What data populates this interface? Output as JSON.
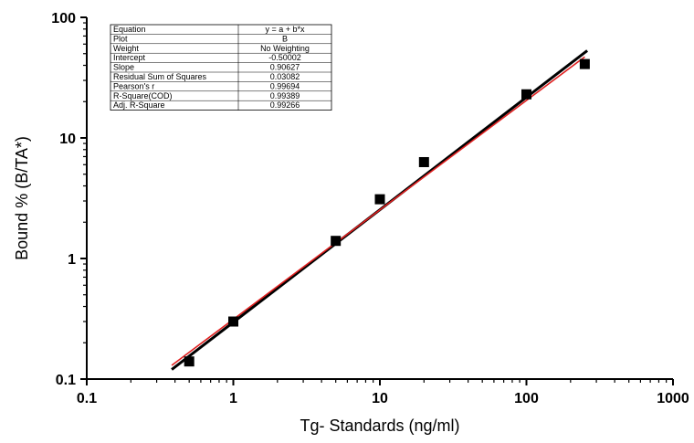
{
  "chart_data": {
    "type": "scatter",
    "title": "",
    "xlabel": "Tg- Standards (ng/ml)",
    "ylabel": "Bound % (B/TA*)",
    "xscale": "log",
    "yscale": "log",
    "xlim": [
      0.1,
      1000
    ],
    "ylim": [
      0.1,
      100
    ],
    "x_ticks": [
      "0.1",
      "1",
      "10",
      "100",
      "1000"
    ],
    "y_ticks": [
      "0.1",
      "1",
      "10",
      "100"
    ],
    "grid": false,
    "series": [
      {
        "kind": "points",
        "marker": "square",
        "color": "#000000",
        "x": [
          0.5,
          1,
          5,
          10,
          20,
          100,
          250
        ],
        "y": [
          0.14,
          0.3,
          1.4,
          3.1,
          6.3,
          23,
          41
        ]
      },
      {
        "kind": "fit-line",
        "color": "#000000",
        "x": [
          0.38,
          260
        ],
        "y": [
          0.12,
          53
        ]
      },
      {
        "kind": "fit-line",
        "color": "#e02020",
        "x": [
          0.38,
          250
        ],
        "y": [
          0.13,
          47
        ]
      }
    ],
    "fit_table": {
      "rows": [
        [
          "Equation",
          "y = a + b*x"
        ],
        [
          "Plot",
          "B"
        ],
        [
          "Weight",
          "No Weighting"
        ],
        [
          "Intercept",
          "-0.50002"
        ],
        [
          "Slope",
          "0.90627"
        ],
        [
          "Residual Sum of Squares",
          "0.03082"
        ],
        [
          "Pearson's r",
          "0.99694"
        ],
        [
          "R-Square(COD)",
          "0.99389"
        ],
        [
          "Adj. R-Square",
          "0.99266"
        ]
      ]
    }
  }
}
